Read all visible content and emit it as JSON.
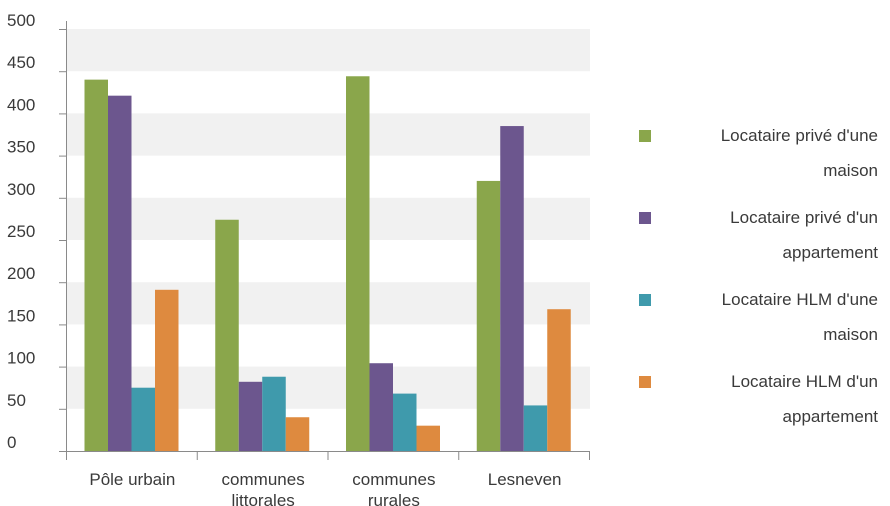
{
  "chart_data": {
    "type": "bar",
    "categories": [
      "Pôle urbain",
      "communes littorales",
      "communes rurales",
      "Lesneven"
    ],
    "series": [
      {
        "name": "Locataire privé d'une maison",
        "color": "#8aa64b",
        "values": [
          440,
          274,
          444,
          320
        ]
      },
      {
        "name": "Locataire privé d'un appartement",
        "color": "#6c568e",
        "values": [
          421,
          82,
          104,
          385
        ]
      },
      {
        "name": "Locataire HLM d'une maison",
        "color": "#3f9aac",
        "values": [
          75,
          88,
          68,
          54
        ]
      },
      {
        "name": "Locataire HLM d'un appartement",
        "color": "#de8a3f",
        "values": [
          191,
          40,
          30,
          168
        ]
      }
    ],
    "yticks": [
      "0",
      "50",
      "100",
      "150",
      "200",
      "250",
      "300",
      "350",
      "400",
      "450",
      "500"
    ],
    "ylim": [
      0,
      500
    ],
    "xlabel": "",
    "ylabel": "",
    "grid": "alternating horizontal bands",
    "legend_position": "right"
  }
}
